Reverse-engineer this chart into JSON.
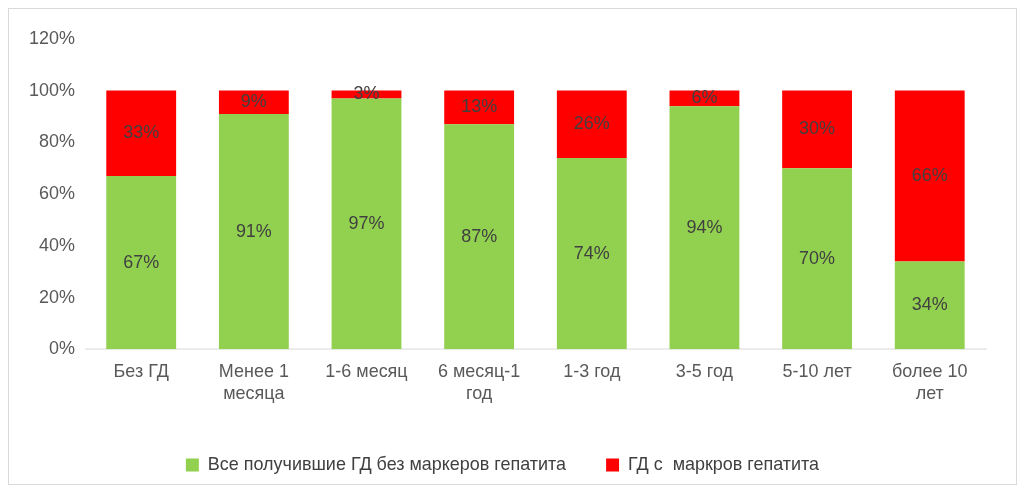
{
  "chart_data": {
    "type": "bar",
    "stacked": true,
    "categories": [
      "Без ГД",
      "Менее 1 месяца",
      "1-6 месяц",
      "6 месяц-1 год",
      "1-3 год",
      "3-5 год",
      "5-10 лет",
      "более 10 лет"
    ],
    "series": [
      {
        "name": "Все получившие ГД без маркеров гепатита",
        "color": "#92d050",
        "values": [
          67,
          91,
          97,
          87,
          74,
          94,
          70,
          34
        ],
        "value_labels": [
          "67%",
          "91%",
          "97%",
          "87%",
          "74%",
          "94%",
          "70%",
          "34%"
        ]
      },
      {
        "name": "ГД с  маркров гепатита",
        "color": "#ff0000",
        "values": [
          33,
          9,
          3,
          13,
          26,
          6,
          30,
          66
        ],
        "value_labels": [
          "33%",
          "9%",
          "3%",
          "13%",
          "26%",
          "6%",
          "30%",
          "66%"
        ]
      }
    ],
    "ylim": [
      0,
      120
    ],
    "yticks": [
      {
        "value": 0,
        "label": "0%"
      },
      {
        "value": 20,
        "label": "20%"
      },
      {
        "value": 40,
        "label": "40%"
      },
      {
        "value": 60,
        "label": "60%"
      },
      {
        "value": 80,
        "label": "80%"
      },
      {
        "value": 100,
        "label": "100%"
      },
      {
        "value": 120,
        "label": "120%"
      }
    ],
    "grid": false,
    "legend": "bottom"
  }
}
